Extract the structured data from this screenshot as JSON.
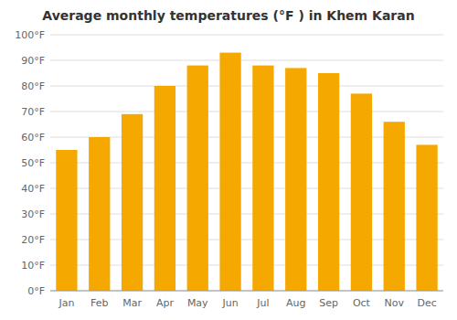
{
  "chart_data": {
    "type": "bar",
    "title": "Average monthly temperatures (°F ) in Khem Karan",
    "categories": [
      "Jan",
      "Feb",
      "Mar",
      "Apr",
      "May",
      "Jun",
      "Jul",
      "Aug",
      "Sep",
      "Oct",
      "Nov",
      "Dec"
    ],
    "values": [
      55,
      60,
      69,
      80,
      88,
      93,
      88,
      87,
      85,
      77,
      66,
      57
    ],
    "color": "#F5A800",
    "ylim": [
      0,
      100
    ],
    "yticks": [
      {
        "value": 0,
        "label": "0°F"
      },
      {
        "value": 10,
        "label": "10°F"
      },
      {
        "value": 20,
        "label": "20°F"
      },
      {
        "value": 30,
        "label": "30°F"
      },
      {
        "value": 40,
        "label": "40°F"
      },
      {
        "value": 50,
        "label": "50°F"
      },
      {
        "value": 60,
        "label": "60°F"
      },
      {
        "value": 70,
        "label": "70°F"
      },
      {
        "value": 80,
        "label": "80°F"
      },
      {
        "value": 90,
        "label": "90°F"
      },
      {
        "value": 100,
        "label": "100°F"
      }
    ],
    "grid": true
  }
}
